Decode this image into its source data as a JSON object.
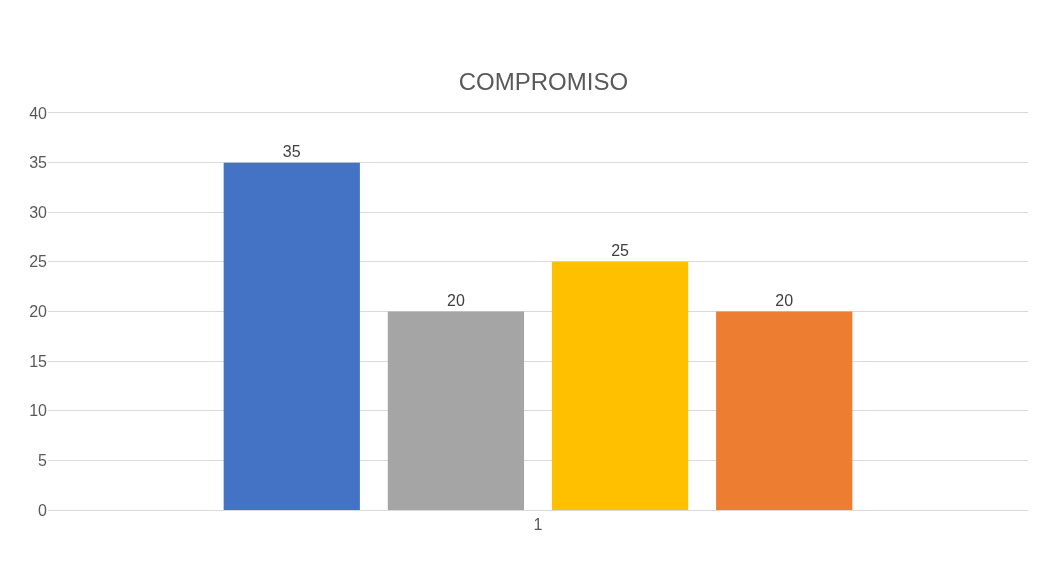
{
  "chart_data": {
    "type": "bar",
    "title": "COMPROMISO",
    "categories": [
      "1"
    ],
    "series": [
      {
        "color": "#4472c4",
        "values": [
          35
        ]
      },
      {
        "color": "#a5a5a5",
        "values": [
          20
        ]
      },
      {
        "color": "#ffc000",
        "values": [
          25
        ]
      },
      {
        "color": "#ed7d31",
        "values": [
          20
        ]
      }
    ],
    "ylim": [
      0,
      40
    ],
    "yticks": [
      0,
      5,
      10,
      15,
      20,
      25,
      30,
      35,
      40
    ],
    "grid": "y",
    "data_labels": true
  }
}
